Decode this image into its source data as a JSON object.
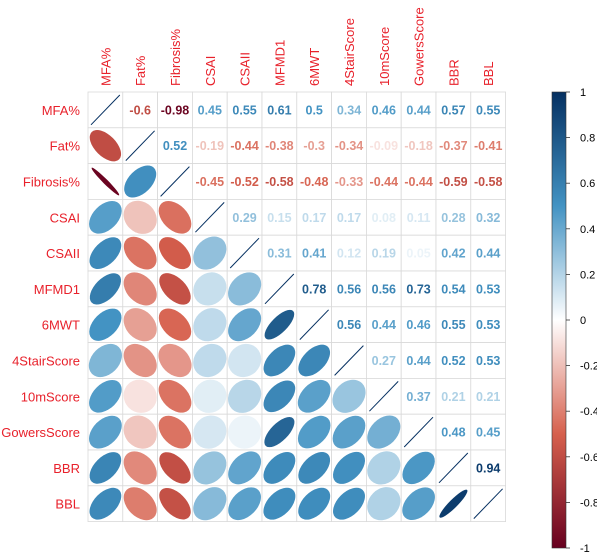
{
  "chart_data": {
    "type": "heatmap",
    "variables": [
      "MFA%",
      "Fat%",
      "Fibrosis%",
      "CSAI",
      "CSAII",
      "MFMD1",
      "6MWT",
      "4StairScore",
      "10mScore",
      "GowersScore",
      "BBR",
      "BBL"
    ],
    "matrix": [
      [
        1,
        -0.6,
        -0.98,
        0.45,
        0.55,
        0.61,
        0.5,
        0.34,
        0.46,
        0.44,
        0.57,
        0.55
      ],
      [
        -0.6,
        1,
        0.52,
        -0.19,
        -0.44,
        -0.38,
        -0.3,
        -0.34,
        -0.09,
        -0.18,
        -0.37,
        -0.41
      ],
      [
        -0.98,
        0.52,
        1,
        -0.45,
        -0.52,
        -0.58,
        -0.48,
        -0.33,
        -0.44,
        -0.44,
        -0.59,
        -0.58
      ],
      [
        0.45,
        -0.19,
        -0.45,
        1,
        0.29,
        0.15,
        0.17,
        0.17,
        0.08,
        0.11,
        0.28,
        0.32
      ],
      [
        0.55,
        -0.44,
        -0.52,
        0.29,
        1,
        0.31,
        0.41,
        0.12,
        0.19,
        0.05,
        0.42,
        0.44
      ],
      [
        0.61,
        -0.38,
        -0.58,
        0.15,
        0.31,
        1,
        0.78,
        0.56,
        0.56,
        0.73,
        0.54,
        0.53
      ],
      [
        0.5,
        -0.3,
        -0.48,
        0.17,
        0.41,
        0.78,
        1,
        0.56,
        0.44,
        0.46,
        0.55,
        0.53
      ],
      [
        0.34,
        -0.34,
        -0.33,
        0.17,
        0.12,
        0.56,
        0.56,
        1,
        0.27,
        0.44,
        0.52,
        0.53
      ],
      [
        0.46,
        -0.09,
        -0.44,
        0.08,
        0.19,
        0.56,
        0.44,
        0.27,
        1,
        0.37,
        0.21,
        0.21
      ],
      [
        0.44,
        -0.18,
        -0.44,
        0.11,
        0.05,
        0.73,
        0.46,
        0.44,
        0.37,
        1,
        0.48,
        0.45
      ],
      [
        0.57,
        -0.37,
        -0.59,
        0.28,
        0.42,
        0.54,
        0.55,
        0.52,
        0.21,
        0.48,
        1,
        0.94
      ],
      [
        0.55,
        -0.41,
        -0.58,
        0.32,
        0.44,
        0.53,
        0.53,
        0.53,
        0.21,
        0.45,
        0.94,
        1
      ]
    ],
    "upper_triangle": "number",
    "lower_triangle": "ellipse",
    "diagonal": "line",
    "colorbar": {
      "range": [
        -1,
        1
      ],
      "ticks": [
        "1",
        "0.8",
        "0.6",
        "0.4",
        "0.2",
        "0",
        "-0.2",
        "-0.4",
        "-0.6",
        "-0.8",
        "-1"
      ],
      "placement": "right"
    },
    "colors": {
      "negative_strong": "#67001f",
      "negative_mid": "#d6604d",
      "neutral": "#ffffff",
      "positive_mid": "#4393c3",
      "positive_strong": "#053061",
      "label": "#e8212b",
      "grid": "#d9d9d9"
    },
    "title": "",
    "xlabel": "",
    "ylabel": ""
  }
}
